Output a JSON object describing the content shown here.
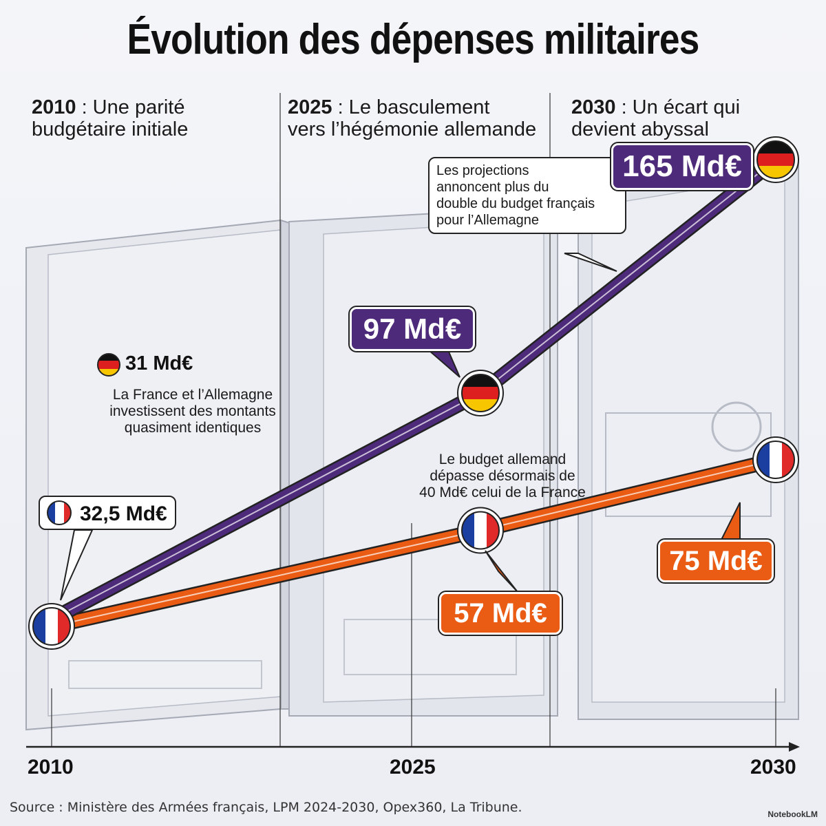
{
  "title": "Évolution des dépenses militaires",
  "periods": [
    {
      "year": "2010",
      "text": " : Une parité",
      "text2": "budgétaire initiale"
    },
    {
      "year": "2025",
      "text": " : Le basculement",
      "text2": "vers l’hégémonie allemande"
    },
    {
      "year": "2030",
      "text": " : Un écart qui",
      "text2": "devient abyssal"
    }
  ],
  "notes": {
    "n2010_l1": "La France et l’Allemagne",
    "n2010_l2": "investissent des montants",
    "n2010_l3": "quasiment identiques",
    "n2025_l1": "Le budget allemand",
    "n2025_l2": "dépasse désormais de",
    "n2025_l3": "40 Md€ celui de la France",
    "callout_l1": "Les projections",
    "callout_l2": "annoncent plus du",
    "callout_l3": "double du budget français",
    "callout_l4": "pour l’Allemagne"
  },
  "labels": {
    "de_2010": "31 Md€",
    "fr_2010": "32,5 Md€",
    "de_2025": "97 Md€",
    "fr_2025": "57 Md€",
    "de_2030": "165 Md€",
    "fr_2030": "75 Md€"
  },
  "source": "Source : Ministère des Armées français, LPM 2024-2030, Opex360, La Tribune.",
  "brand": "NotebookLM",
  "colors": {
    "germany": "#4e2a7a",
    "france": "#ea5b14"
  },
  "chart_data": {
    "type": "line",
    "x_ticks": [
      "2010",
      "2025",
      "2030"
    ],
    "series": [
      {
        "name": "Allemagne",
        "icon": "germany-flag-icon",
        "color": "#4e2a7a",
        "points": [
          {
            "x": 2010,
            "y": 31
          },
          {
            "x": 2025,
            "y": 97
          },
          {
            "x": 2030,
            "y": 165
          }
        ]
      },
      {
        "name": "France",
        "icon": "france-flag-icon",
        "color": "#ea5b14",
        "points": [
          {
            "x": 2010,
            "y": 32.5
          },
          {
            "x": 2025,
            "y": 57
          },
          {
            "x": 2030,
            "y": 75
          }
        ]
      }
    ]
  }
}
